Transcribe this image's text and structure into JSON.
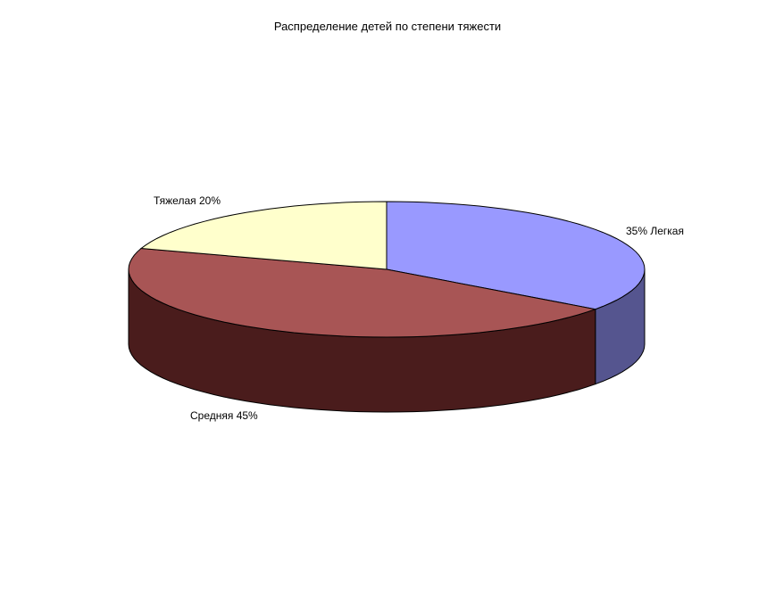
{
  "chart_data": {
    "type": "pie",
    "style": "3d",
    "title": "Распределение детей по степени тяжести",
    "categories": [
      "Легкая",
      "Средняя",
      "Тяжелая"
    ],
    "values": [
      35,
      45,
      20
    ],
    "unit": "%",
    "labels": [
      "35% Легкая",
      "Средняя  45%",
      "Тяжелая 20%"
    ],
    "colors": [
      "#9999FF",
      "#A85555",
      "#FFFFCC"
    ],
    "side_colors": [
      "#55558F",
      "#4A1C1C",
      "#BDBD96"
    ],
    "legend": "none"
  }
}
